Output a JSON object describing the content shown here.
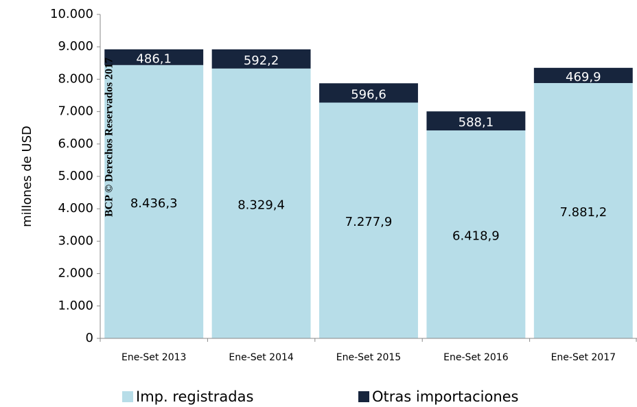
{
  "chart_data": {
    "type": "stacked_bar",
    "watermark": "BCP © Derechos Reservados 2017",
    "y_label": "millones de  USD",
    "categories": [
      "Ene-Set 2013",
      "Ene-Set 2014",
      "Ene-Set 2015",
      "Ene-Set 2016",
      "Ene-Set 2017"
    ],
    "series": [
      {
        "name": "Imp. registradas",
        "color": "#b7dde8",
        "label_color": "#000000",
        "values": [
          8436.3,
          8329.4,
          7277.9,
          6418.9,
          7881.2
        ],
        "value_labels": [
          "8.436,3",
          "8.329,4",
          "7.277,9",
          "6.418,9",
          "7.881,2"
        ]
      },
      {
        "name": "Otras importaciones",
        "color": "#17253d",
        "label_color": "#ffffff",
        "values": [
          486.1,
          592.2,
          596.6,
          588.1,
          469.9
        ],
        "value_labels": [
          "486,1",
          "592,2",
          "596,6",
          "588,1",
          "469,9"
        ]
      }
    ],
    "ylim": [
      0,
      10000
    ],
    "yticks": [
      0,
      {
        "value": 1000,
        "label": "1.000"
      },
      {
        "value": 2000,
        "label": "2.000"
      },
      {
        "value": 3000,
        "label": "3.000"
      },
      {
        "value": 4000,
        "label": "4.000"
      },
      {
        "value": 5000,
        "label": "5.000"
      },
      {
        "value": 6000,
        "label": "6.000"
      },
      {
        "value": 7000,
        "label": "7.000"
      },
      {
        "value": 8000,
        "label": "8.000"
      },
      {
        "value": 9000,
        "label": "9.000"
      },
      {
        "value": 10000,
        "label": "10.000"
      }
    ],
    "grid": false,
    "legend": "bottom"
  }
}
